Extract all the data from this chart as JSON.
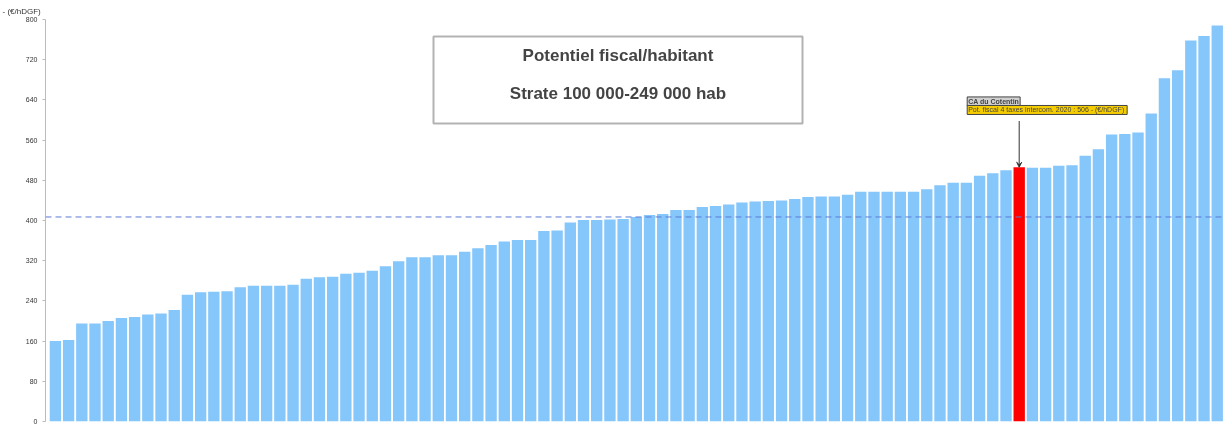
{
  "chart_data": {
    "type": "bar",
    "title": "Potentiel fiscal/habitant",
    "subtitle": "Strate 100 000-249 000 hab",
    "ylabel": "- (€/hDGF)",
    "categories": [
      null,
      null,
      null,
      null,
      null,
      null,
      null,
      null,
      null,
      null,
      null,
      null,
      null,
      null,
      null,
      null,
      null,
      null,
      null,
      null,
      null,
      null,
      null,
      null,
      null,
      null,
      null,
      null,
      null,
      null,
      null,
      null,
      null,
      null,
      null,
      null,
      null,
      null,
      null,
      null,
      null,
      null,
      null,
      null,
      null,
      null,
      null,
      null,
      null,
      null,
      null,
      null,
      null,
      null,
      null,
      null,
      null,
      null,
      null,
      null,
      null,
      null,
      null,
      null,
      null,
      null,
      null,
      null,
      null,
      null,
      null,
      null,
      null,
      null,
      null,
      null,
      null,
      null,
      null,
      null,
      null,
      null,
      null,
      null,
      null,
      null,
      null,
      null,
      null
    ],
    "values": [
      160,
      162,
      195,
      195,
      200,
      206,
      208,
      213,
      215,
      222,
      252,
      257,
      258,
      259,
      267,
      270,
      270,
      270,
      272,
      284,
      287,
      288,
      294,
      296,
      300,
      309,
      319,
      327,
      327,
      331,
      331,
      338,
      345,
      351,
      358,
      361,
      361,
      379,
      380,
      396,
      401,
      401,
      402,
      403,
      407,
      411,
      413,
      421,
      421,
      427,
      429,
      432,
      436,
      438,
      439,
      440,
      443,
      447,
      448,
      448,
      451,
      457,
      457,
      457,
      457,
      457,
      462,
      470,
      475,
      475,
      489,
      494,
      500,
      506,
      505,
      505,
      509,
      510,
      529,
      542,
      571,
      572,
      575,
      613,
      683,
      699,
      758,
      767,
      788
    ],
    "colors": [
      "#85c6fb",
      "#85c6fb",
      "#85c6fb",
      "#85c6fb",
      "#85c6fb",
      "#85c6fb",
      "#85c6fb",
      "#85c6fb",
      "#85c6fb",
      "#85c6fb",
      "#85c6fb",
      "#85c6fb",
      "#85c6fb",
      "#85c6fb",
      "#85c6fb",
      "#85c6fb",
      "#85c6fb",
      "#85c6fb",
      "#85c6fb",
      "#85c6fb",
      "#85c6fb",
      "#85c6fb",
      "#85c6fb",
      "#85c6fb",
      "#85c6fb",
      "#85c6fb",
      "#85c6fb",
      "#85c6fb",
      "#85c6fb",
      "#85c6fb",
      "#85c6fb",
      "#85c6fb",
      "#85c6fb",
      "#85c6fb",
      "#85c6fb",
      "#85c6fb",
      "#85c6fb",
      "#85c6fb",
      "#85c6fb",
      "#85c6fb",
      "#85c6fb",
      "#85c6fb",
      "#85c6fb",
      "#85c6fb",
      "#85c6fb",
      "#85c6fb",
      "#85c6fb",
      "#85c6fb",
      "#85c6fb",
      "#85c6fb",
      "#85c6fb",
      "#85c6fb",
      "#85c6fb",
      "#85c6fb",
      "#85c6fb",
      "#85c6fb",
      "#85c6fb",
      "#85c6fb",
      "#85c6fb",
      "#85c6fb",
      "#85c6fb",
      "#85c6fb",
      "#85c6fb",
      "#85c6fb",
      "#85c6fb",
      "#85c6fb",
      "#85c6fb",
      "#85c6fb",
      "#85c6fb",
      "#85c6fb",
      "#85c6fb",
      "#85c6fb",
      "#85c6fb",
      "#ff0000",
      "#85c6fb",
      "#85c6fb",
      "#85c6fb",
      "#85c6fb",
      "#85c6fb",
      "#85c6fb",
      "#85c6fb",
      "#85c6fb",
      "#85c6fb",
      "#85c6fb",
      "#85c6fb",
      "#85c6fb",
      "#85c6fb",
      "#85c6fb",
      "#85c6fb"
    ],
    "ylim": [
      0,
      800
    ],
    "yticks": [
      0,
      80,
      160,
      240,
      320,
      400,
      480,
      560,
      640,
      720,
      800
    ],
    "ref_lines": [
      {
        "axis": "y",
        "value": 407,
        "color": "#5b7bd5",
        "line_style": "dashed"
      }
    ],
    "annotations": [
      "CA du Cotentin",
      "Pot. fiscal 4 taxes intercom. 2020 :  506 - (€/hDGF)"
    ],
    "tick_labels": "y",
    "grid": false
  }
}
